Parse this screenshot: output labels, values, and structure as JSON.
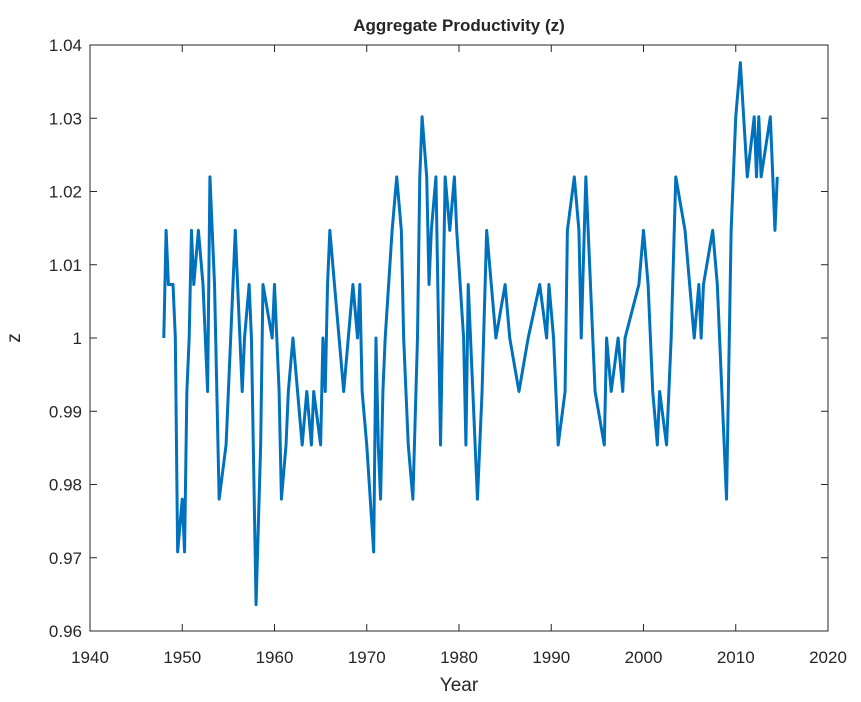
{
  "chart_data": {
    "type": "line",
    "title": "Aggregate Productivity (z)",
    "xlabel": "Year",
    "ylabel": "z",
    "x": [
      1948.0,
      1948.25,
      1948.5,
      1949.0,
      1949.25,
      1949.5,
      1950.0,
      1950.25,
      1950.5,
      1950.75,
      1951.0,
      1951.25,
      1951.75,
      1952.25,
      1952.5,
      1952.75,
      1953.0,
      1953.5,
      1954.0,
      1954.75,
      1955.0,
      1955.5,
      1955.75,
      1956.0,
      1956.5,
      1956.75,
      1957.25,
      1957.5,
      1958.0,
      1958.5,
      1958.75,
      1959.75,
      1960.0,
      1960.5,
      1960.75,
      1961.25,
      1961.5,
      1962.0,
      1962.5,
      1963.0,
      1963.5,
      1964.0,
      1964.25,
      1965.0,
      1965.25,
      1965.5,
      1965.75,
      1966.0,
      1966.5,
      1967.0,
      1967.5,
      1968.0,
      1968.5,
      1969.0,
      1969.25,
      1969.5,
      1970.0,
      1970.75,
      1971.0,
      1971.25,
      1971.5,
      1971.75,
      1972.0,
      1972.75,
      1973.25,
      1973.75,
      1974.0,
      1974.5,
      1975.0,
      1975.5,
      1975.75,
      1976.0,
      1976.5,
      1976.75,
      1977.0,
      1977.5,
      1978.0,
      1978.5,
      1979.0,
      1979.5,
      1979.75,
      1980.5,
      1980.75,
      1981.0,
      1981.5,
      1982.0,
      1982.5,
      1983.0,
      1983.5,
      1984.0,
      1985.0,
      1985.5,
      1986.5,
      1987.5,
      1988.75,
      1989.5,
      1989.75,
      1990.25,
      1990.75,
      1991.5,
      1991.75,
      1992.5,
      1993.0,
      1993.25,
      1993.75,
      1994.0,
      1994.75,
      1995.75,
      1996.0,
      1996.5,
      1997.25,
      1997.75,
      1998.0,
      1999.5,
      2000.0,
      2000.5,
      2001.0,
      2001.5,
      2001.75,
      2002.5,
      2003.0,
      2003.5,
      2004.5,
      2005.5,
      2006.0,
      2006.25,
      2006.5,
      2007.5,
      2008.0,
      2009.0,
      2009.5,
      2010.0,
      2010.5,
      2011.25,
      2012.0,
      2012.25,
      2012.5,
      2012.75,
      2013.75,
      2014.25,
      2014.5
    ],
    "series": [
      {
        "color": "#0072bd",
        "values": [
          1.0,
          1.0147,
          1.0073,
          1.0073,
          1.0,
          0.9708,
          0.978,
          0.9708,
          0.9927,
          1.0,
          1.0147,
          1.0073,
          1.0147,
          1.0073,
          1.0,
          0.9927,
          1.022,
          1.0073,
          0.978,
          0.9854,
          0.9927,
          1.0073,
          1.0147,
          1.0073,
          0.9927,
          1.0,
          1.0073,
          1.0,
          0.9636,
          0.9854,
          1.0073,
          1.0,
          1.0073,
          0.9927,
          0.978,
          0.9854,
          0.9927,
          1.0,
          0.9927,
          0.9854,
          0.9927,
          0.9854,
          0.9927,
          0.9854,
          1.0,
          0.9927,
          1.0073,
          1.0147,
          1.0073,
          1.0,
          0.9927,
          1.0,
          1.0073,
          1.0,
          1.0073,
          0.9927,
          0.9854,
          0.9708,
          1.0,
          0.9854,
          0.978,
          0.9927,
          1.0,
          1.0147,
          1.022,
          1.0147,
          1.0,
          0.9854,
          0.978,
          1.0,
          1.022,
          1.0302,
          1.022,
          1.0073,
          1.0147,
          1.022,
          0.9854,
          1.022,
          1.0147,
          1.022,
          1.0147,
          1.0,
          0.9854,
          1.0073,
          0.9927,
          0.978,
          0.9927,
          1.0147,
          1.0073,
          1.0,
          1.0073,
          1.0,
          0.9927,
          1.0,
          1.0073,
          1.0,
          1.0073,
          1.0,
          0.9854,
          0.9927,
          1.0147,
          1.022,
          1.0147,
          1.0,
          1.022,
          1.0147,
          0.9927,
          0.9854,
          1.0,
          0.9927,
          1.0,
          0.9927,
          1.0,
          1.0073,
          1.0147,
          1.0073,
          0.9927,
          0.9854,
          0.9927,
          0.9854,
          1.0,
          1.022,
          1.0147,
          1.0,
          1.0073,
          1.0,
          1.0073,
          1.0147,
          1.0073,
          0.978,
          1.0147,
          1.0302,
          1.0376,
          1.022,
          1.0302,
          1.022,
          1.0302,
          1.022,
          1.0302,
          1.0147,
          1.022
        ]
      }
    ],
    "xlim": [
      1940,
      2020
    ],
    "xticks": [
      1940,
      1950,
      1960,
      1970,
      1980,
      1990,
      2000,
      2010,
      2020
    ],
    "ylim": [
      0.96,
      1.04
    ],
    "yticks": [
      0.96,
      0.97,
      0.98,
      0.99,
      1,
      1.01,
      1.02,
      1.03,
      1.04
    ],
    "grid": false
  }
}
